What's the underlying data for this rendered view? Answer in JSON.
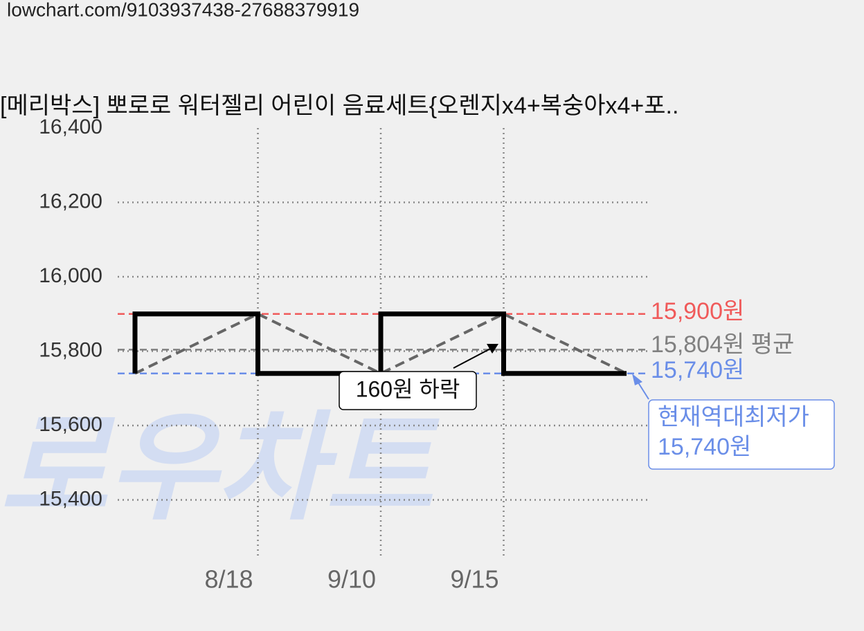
{
  "url": "lowchart.com/9103937438-27688379919",
  "chart_data": {
    "type": "line",
    "title": "[메리박스] 뽀로로 워터젤리 어린이 음료세트{오렌지x4+복숭아x4+포..",
    "watermark": "로우차트",
    "categories": [
      null,
      "8/18",
      "9/10",
      "9/15",
      null
    ],
    "values": [
      15740,
      15900,
      15740,
      15900,
      15740
    ],
    "color": "#000000",
    "trend_color": "#666666",
    "ylim": [
      15250,
      16400
    ],
    "yticks": [
      {
        "value": 15400,
        "label": "15,400"
      },
      {
        "value": 15600,
        "label": "15,600"
      },
      {
        "value": 15800,
        "label": "15,800"
      },
      {
        "value": 16000,
        "label": "16,000"
      },
      {
        "value": 16200,
        "label": "16,200"
      },
      {
        "value": 16400,
        "label": "16,400"
      }
    ],
    "grid": true,
    "reference_lines": [
      {
        "value": 15900,
        "label": "15,900원",
        "color": "#f05a5a"
      },
      {
        "value": 15804,
        "label": "15,804원 평균",
        "color": "#808080"
      },
      {
        "value": 15740,
        "label": "15,740원",
        "color": "#6a8ee8"
      }
    ],
    "annotations": [
      {
        "text": "160원 하락"
      },
      {
        "text": "현재역대최저가",
        "value_label": "15,740원",
        "value": 15740
      }
    ]
  }
}
